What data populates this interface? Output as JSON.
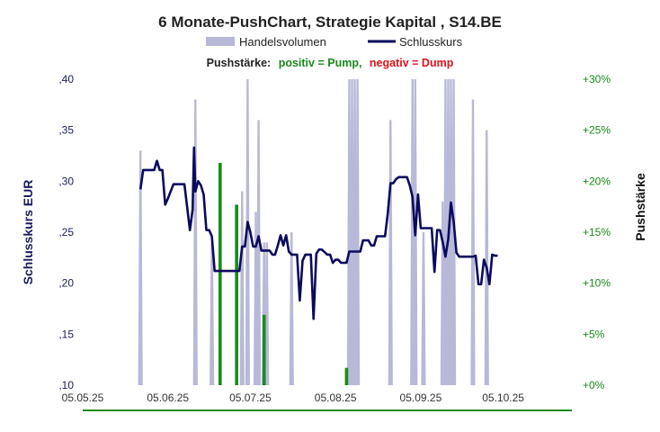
{
  "chart_data": {
    "type": "line",
    "title": "6 Monate-PushChart,  Strategie Kapital , S14.BE",
    "legend": {
      "placement": "top-center",
      "entries": [
        {
          "label": "Handelsvolumen",
          "color": "#b8b8d8"
        },
        {
          "label": "Schlusskurs",
          "color": "#0a0a5e"
        }
      ]
    },
    "push_legend": {
      "prefix": "Pushstärke:",
      "positive": "positiv = Pump,",
      "negative": "negativ = Dump",
      "positive_color": "#1a8a1a",
      "negative_color": "#e0101a"
    },
    "ylabel": "Schlusskurs EUR",
    "y2label": "Pushstärke",
    "ylim": [
      0.1,
      0.4
    ],
    "y_ticks": [
      ",10",
      ",15",
      ",20",
      ",25",
      ",30",
      ",35",
      ",40"
    ],
    "y2lim": [
      0,
      30
    ],
    "y2_ticks": [
      "+0%",
      "+5%",
      "+10%",
      "+15%",
      "+20%",
      "+25%",
      "+30%"
    ],
    "x_ticks": [
      "05.05.25",
      "05.06.25",
      "05.07.25",
      "05.08.25",
      "05.09.25",
      "05.10.25"
    ],
    "x_range_days": [
      0,
      178
    ],
    "series": [
      {
        "name": "Schlusskurs",
        "color": "#0a0a5e",
        "points": [
          [
            21,
            0.292
          ],
          [
            22,
            0.311
          ],
          [
            24,
            0.311
          ],
          [
            26,
            0.311
          ],
          [
            27,
            0.32
          ],
          [
            28,
            0.311
          ],
          [
            29,
            0.311
          ],
          [
            30,
            0.277
          ],
          [
            31,
            0.283
          ],
          [
            33,
            0.297
          ],
          [
            34,
            0.297
          ],
          [
            37,
            0.297
          ],
          [
            39,
            0.252
          ],
          [
            40,
            0.272
          ],
          [
            40.5,
            0.333
          ],
          [
            41,
            0.29
          ],
          [
            42,
            0.3
          ],
          [
            43,
            0.296
          ],
          [
            44,
            0.287
          ],
          [
            45,
            0.252
          ],
          [
            46,
            0.252
          ],
          [
            47,
            0.246
          ],
          [
            48,
            0.212
          ],
          [
            50,
            0.212
          ],
          [
            53,
            0.212
          ],
          [
            56,
            0.212
          ],
          [
            57,
            0.212
          ],
          [
            58,
            0.236
          ],
          [
            59,
            0.236
          ],
          [
            60,
            0.26
          ],
          [
            61,
            0.25
          ],
          [
            62,
            0.236
          ],
          [
            63,
            0.236
          ],
          [
            64,
            0.246
          ],
          [
            65,
            0.232
          ],
          [
            66,
            0.232
          ],
          [
            68,
            0.232
          ],
          [
            69,
            0.228
          ],
          [
            70,
            0.228
          ],
          [
            71,
            0.237
          ],
          [
            72,
            0.247
          ],
          [
            73,
            0.237
          ],
          [
            74,
            0.247
          ],
          [
            75,
            0.231
          ],
          [
            76,
            0.228
          ],
          [
            77,
            0.228
          ],
          [
            78,
            0.228
          ],
          [
            79,
            0.183
          ],
          [
            80,
            0.222
          ],
          [
            81,
            0.228
          ],
          [
            82,
            0.228
          ],
          [
            83,
            0.228
          ],
          [
            84,
            0.165
          ],
          [
            85,
            0.229
          ],
          [
            86,
            0.233
          ],
          [
            87,
            0.233
          ],
          [
            89,
            0.228
          ],
          [
            90,
            0.228
          ],
          [
            91,
            0.22
          ],
          [
            92,
            0.223
          ],
          [
            93,
            0.223
          ],
          [
            94,
            0.22
          ],
          [
            95,
            0.22
          ],
          [
            96,
            0.22
          ],
          [
            97,
            0.231
          ],
          [
            98,
            0.231
          ],
          [
            100,
            0.231
          ],
          [
            101,
            0.231
          ],
          [
            102,
            0.242
          ],
          [
            103,
            0.242
          ],
          [
            104,
            0.242
          ],
          [
            105,
            0.237
          ],
          [
            106,
            0.237
          ],
          [
            107,
            0.246
          ],
          [
            110,
            0.246
          ],
          [
            111,
            0.268
          ],
          [
            112,
            0.298
          ],
          [
            113,
            0.298
          ],
          [
            114,
            0.302
          ],
          [
            115,
            0.304
          ],
          [
            116,
            0.304
          ],
          [
            118,
            0.304
          ],
          [
            119,
            0.296
          ],
          [
            120,
            0.285
          ],
          [
            121,
            0.247
          ],
          [
            122,
            0.287
          ],
          [
            123,
            0.254
          ],
          [
            124,
            0.254
          ],
          [
            126,
            0.254
          ],
          [
            127,
            0.254
          ],
          [
            128,
            0.211
          ],
          [
            129,
            0.252
          ],
          [
            130,
            0.252
          ],
          [
            131,
            0.24
          ],
          [
            132,
            0.226
          ],
          [
            133,
            0.243
          ],
          [
            134,
            0.279
          ],
          [
            135,
            0.26
          ],
          [
            136,
            0.23
          ],
          [
            137,
            0.226
          ],
          [
            139,
            0.226
          ],
          [
            141,
            0.226
          ],
          [
            142,
            0.226
          ],
          [
            143,
            0.227
          ],
          [
            144,
            0.199
          ],
          [
            145,
            0.199
          ],
          [
            146,
            0.223
          ],
          [
            147,
            0.215
          ],
          [
            148,
            0.199
          ],
          [
            149,
            0.228
          ],
          [
            150,
            0.227
          ],
          [
            151,
            0.227
          ]
        ]
      },
      {
        "name": "Handelsvolumen",
        "type": "area",
        "color": "#b8b8d8",
        "peaks": [
          [
            21,
            0.33
          ],
          [
            41,
            0.38
          ],
          [
            47,
            0.24
          ],
          [
            58,
            0.29
          ],
          [
            60,
            0.43
          ],
          [
            63,
            0.27
          ],
          [
            64,
            0.36
          ],
          [
            66,
            0.24
          ],
          [
            67,
            0.24
          ],
          [
            76,
            0.25
          ],
          [
            97,
            0.43
          ],
          [
            98,
            0.43
          ],
          [
            99,
            0.43
          ],
          [
            100,
            0.43
          ],
          [
            112,
            0.36
          ],
          [
            120,
            0.43
          ],
          [
            121,
            0.43
          ],
          [
            124,
            0.25
          ],
          [
            131,
            0.28
          ],
          [
            132,
            0.43
          ],
          [
            133,
            0.43
          ],
          [
            134,
            0.43
          ],
          [
            135,
            0.43
          ],
          [
            142,
            0.38
          ],
          [
            147,
            0.35
          ]
        ]
      },
      {
        "name": "Pushstärke",
        "type": "bar",
        "color": "#1a8a1a",
        "unit": "%",
        "values": [
          [
            50,
            21.8
          ],
          [
            56,
            17.7
          ],
          [
            66,
            6.9
          ],
          [
            96,
            1.7
          ]
        ]
      }
    ]
  }
}
